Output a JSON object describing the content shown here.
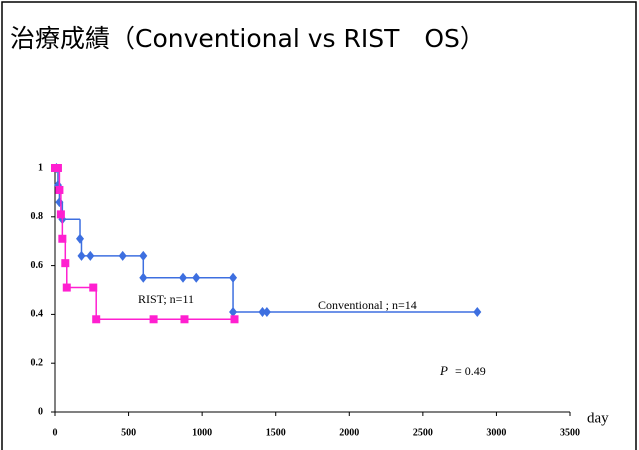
{
  "chart_data": {
    "type": "step",
    "title": "治療成績（Conventional vs RIST　OS）",
    "x_label": "day",
    "xlim": [
      0,
      3500
    ],
    "xticks": [
      0,
      500,
      1000,
      1500,
      2000,
      2500,
      3000,
      3500
    ],
    "ylim": [
      0,
      1
    ],
    "yticks": [
      0,
      0.2,
      0.4,
      0.6,
      0.8,
      1
    ],
    "series": [
      {
        "name": "Conventional ; n=14",
        "color": "#3d6fe0",
        "x": [
          10,
          20,
          30,
          50,
          170,
          180,
          240,
          460,
          600,
          600,
          870,
          960,
          1210,
          1210,
          1410,
          1440,
          2870
        ],
        "values": [
          1,
          0.93,
          0.86,
          0.79,
          0.71,
          0.64,
          0.64,
          0.64,
          0.64,
          0.55,
          0.55,
          0.55,
          0.55,
          0.41,
          0.41,
          0.41,
          0.41
        ]
      },
      {
        "name": "RIST; n=11",
        "color": "#ff1fd0",
        "x": [
          0,
          20,
          30,
          40,
          50,
          70,
          80,
          260,
          280,
          670,
          880,
          1220
        ],
        "values": [
          1,
          1,
          0.91,
          0.81,
          0.71,
          0.61,
          0.51,
          0.51,
          0.38,
          0.38,
          0.38,
          0.38
        ]
      }
    ],
    "p_value": {
      "symbol": "P",
      "text": "= 0.49"
    }
  }
}
